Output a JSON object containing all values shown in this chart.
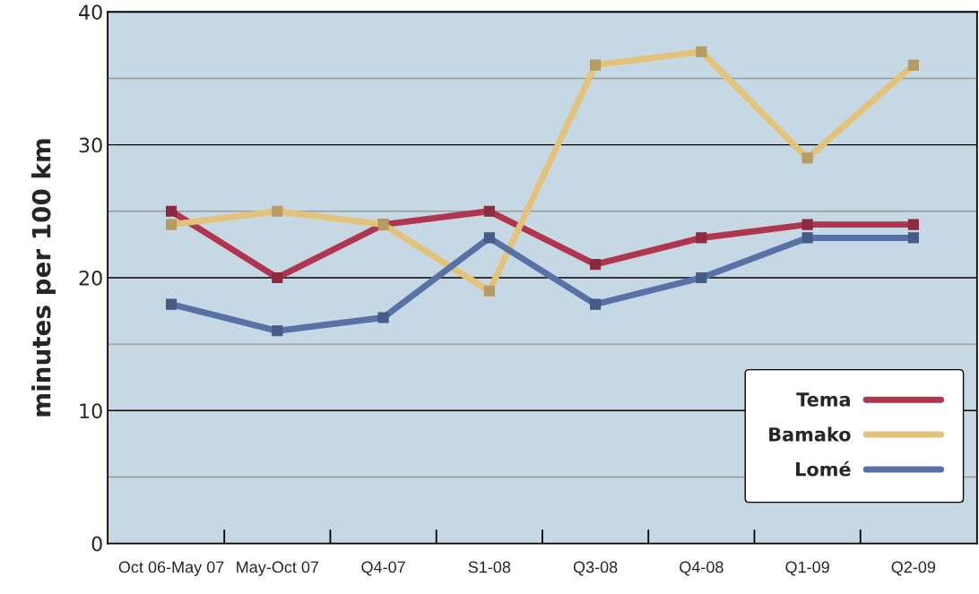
{
  "chart_data": {
    "type": "line",
    "ylabel": "minutes per 100 km",
    "categories": [
      "Oct 06-May 07",
      "May-Oct 07",
      "Q4-07",
      "S1-08",
      "Q3-08",
      "Q4-08",
      "Q1-09",
      "Q2-09"
    ],
    "ylim": [
      0,
      40
    ],
    "yticks": [
      0,
      {
        "value": 5,
        "label": null
      },
      10,
      {
        "value": 15,
        "label": null
      },
      20,
      {
        "value": 25,
        "label": null
      },
      30,
      {
        "value": 35,
        "label": null
      },
      40
    ],
    "grid": "y",
    "legend": "bottom right",
    "marker": "square",
    "line_style": "solid",
    "series": [
      {
        "name": "Tema",
        "color": "#b0354e",
        "values": [
          25,
          20,
          24,
          25,
          21,
          23,
          24,
          24
        ]
      },
      {
        "name": "Bamako",
        "color": "#e3c27a",
        "values": [
          24,
          25,
          24,
          19,
          36,
          37,
          29,
          36
        ]
      },
      {
        "name": "Lomé",
        "color": "#5872a8",
        "values": [
          18,
          16,
          17,
          23,
          18,
          20,
          23,
          23
        ]
      }
    ]
  }
}
